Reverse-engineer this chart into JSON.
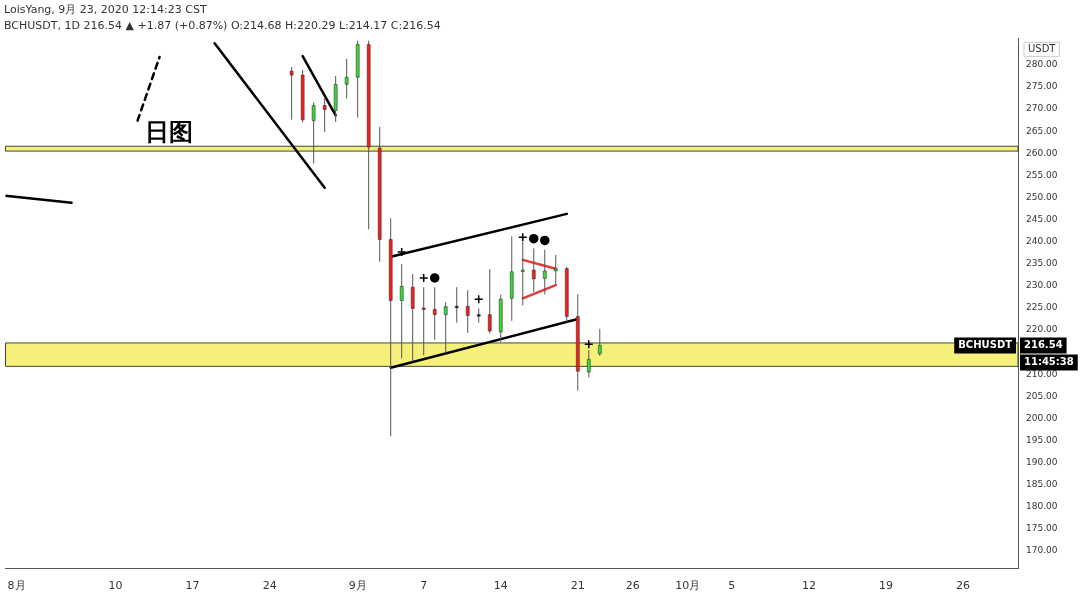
{
  "chart_data": {
    "type": "candlestick",
    "title": "LoisYang, 9月 23, 2020 12:14:23 CST",
    "subtitle": "BCHUSDT, 1D 216.54 ▲ +1.87 (+0.87%) O:214.68 H:220.29 L:214.17 C:216.54",
    "ylabel": "USDT",
    "x": [
      "2020-08-26",
      "2020-08-27",
      "2020-08-28",
      "2020-08-29",
      "2020-08-30",
      "2020-08-31",
      "2020-09-01",
      "2020-09-02",
      "2020-09-03",
      "2020-09-04",
      "2020-09-05",
      "2020-09-06",
      "2020-09-07",
      "2020-09-08",
      "2020-09-09",
      "2020-09-10",
      "2020-09-11",
      "2020-09-12",
      "2020-09-13",
      "2020-09-14",
      "2020-09-15",
      "2020-09-16",
      "2020-09-17",
      "2020-09-18",
      "2020-09-19",
      "2020-09-20",
      "2020-09-21",
      "2020-09-22",
      "2020-09-23"
    ],
    "ohlc": [
      [
        278.6,
        279.5,
        267.6,
        277.7
      ],
      [
        277.7,
        278.9,
        267.0,
        267.6
      ],
      [
        267.4,
        271.5,
        257.7,
        270.8
      ],
      [
        270.8,
        272.4,
        264.8,
        269.9
      ],
      [
        269.7,
        277.5,
        267.1,
        275.6
      ],
      [
        275.6,
        281.4,
        272.4,
        277.2
      ],
      [
        277.2,
        285.5,
        268.1,
        284.6
      ],
      [
        284.6,
        285.5,
        242.8,
        261.4
      ],
      [
        261.2,
        266.0,
        235.5,
        240.5
      ],
      [
        240.5,
        245.3,
        196.0,
        226.7
      ],
      [
        226.7,
        235.0,
        213.6,
        229.9
      ],
      [
        229.7,
        232.7,
        212.9,
        224.9
      ],
      [
        225.0,
        229.7,
        214.3,
        224.7
      ],
      [
        224.7,
        229.7,
        217.8,
        223.5
      ],
      [
        223.5,
        226.3,
        214.8,
        225.3
      ],
      [
        225.3,
        229.7,
        221.7,
        225.4
      ],
      [
        225.4,
        229.0,
        219.4,
        223.3
      ],
      [
        223.3,
        224.9,
        221.7,
        223.5
      ],
      [
        223.5,
        233.8,
        219.2,
        219.8
      ],
      [
        219.6,
        228.0,
        217.3,
        227.0
      ],
      [
        227.2,
        241.2,
        222.1,
        233.2
      ],
      [
        233.4,
        240.0,
        225.6,
        233.6
      ],
      [
        233.6,
        238.5,
        228.6,
        231.6
      ],
      [
        231.7,
        238.2,
        228.1,
        233.4
      ],
      [
        233.4,
        237.0,
        230.4,
        233.9
      ],
      [
        233.9,
        234.3,
        221.7,
        223.1
      ],
      [
        223.1,
        228.1,
        206.3,
        210.7
      ],
      [
        210.5,
        215.5,
        209.3,
        213.4
      ],
      [
        214.68,
        220.29,
        214.17,
        216.54
      ]
    ],
    "colors": [
      "#ff1a1a",
      "#ff1a1a",
      "#33dd33",
      "#ff1a1a",
      "#33dd33",
      "#33dd33",
      "#33dd33",
      "#ff1a1a",
      "#ff1a1a",
      "#ff1a1a",
      "#33dd33",
      "#ff1a1a",
      "#ff1a1a",
      "#ff1a1a",
      "#33dd33",
      "#000000",
      "#ff1a1a",
      "#000000",
      "#ff1a1a",
      "#33dd33",
      "#33dd33",
      "#33dd33",
      "#ff1a1a",
      "#33dd33",
      "#33dd33",
      "#ff1a1a",
      "#ff1a1a",
      "#33dd33",
      "#33dd33"
    ],
    "series": [
      {
        "type": "line",
        "color": "#000000",
        "line_style": "solid",
        "x": [
          "2020-07-31",
          "2020-08-06"
        ],
        "values": [
          250.4,
          248.8
        ]
      },
      {
        "type": "line",
        "color": "#000000",
        "line_style": "dashed",
        "x": [
          "2020-08-12",
          "2020-08-14"
        ],
        "values": [
          267.4,
          281.8
        ]
      },
      {
        "type": "line",
        "color": "#000000",
        "line_style": "solid",
        "x": [
          "2020-08-19",
          "2020-08-29"
        ],
        "values": [
          284.9,
          252.2
        ]
      },
      {
        "type": "line",
        "color": "#000000",
        "line_style": "solid",
        "x": [
          "2020-08-27",
          "2020-08-30"
        ],
        "values": [
          282.0,
          268.6
        ]
      },
      {
        "type": "line",
        "color": "#000000",
        "line_style": "solid",
        "x": [
          "2020-09-04",
          "2020-09-20"
        ],
        "values": [
          236.6,
          246.3
        ]
      },
      {
        "type": "line",
        "color": "#000000",
        "line_style": "solid",
        "x": [
          "2020-09-04",
          "2020-09-21"
        ],
        "values": [
          211.5,
          222.5
        ]
      },
      {
        "type": "line",
        "color": "#e53935",
        "line_style": "solid",
        "x": [
          "2020-09-16",
          "2020-09-19"
        ],
        "values": [
          235.9,
          233.9
        ]
      },
      {
        "type": "line",
        "color": "#e53935",
        "line_style": "solid",
        "x": [
          "2020-09-16",
          "2020-09-19"
        ],
        "values": [
          227.2,
          230.2
        ]
      },
      {
        "type": "scatter",
        "color": "#000000",
        "marker": "cross",
        "x": [
          "2020-09-05",
          "2020-09-07",
          "2020-09-12",
          "2020-09-16",
          "2020-09-22"
        ],
        "values": [
          237.7,
          231.8,
          227.0,
          241.0,
          216.8
        ]
      },
      {
        "type": "scatter",
        "color": "#000000",
        "marker": "circle",
        "x": [
          "2020-09-08",
          "2020-09-17",
          "2020-09-18"
        ],
        "values": [
          231.8,
          240.7,
          240.3
        ]
      }
    ],
    "bands": [
      {
        "axis": "y",
        "from": 211.8,
        "to": 217.1,
        "color": "#f5f07a"
      },
      {
        "axis": "y",
        "from": 260.5,
        "to": 261.6,
        "color": "#f5f07a"
      }
    ],
    "annotations": [
      "日图",
      "BCHUSDT",
      "216.54",
      "11:45:38"
    ],
    "xlim": [
      "2020-07-31",
      "2020-10-31"
    ],
    "xticks": [
      {
        "value": "2020-08-01",
        "label": "8月"
      },
      {
        "value": "2020-08-10",
        "label": "10"
      },
      {
        "value": "2020-08-17",
        "label": "17"
      },
      {
        "value": "2020-08-24",
        "label": "24"
      },
      {
        "value": "2020-09-01",
        "label": "9月"
      },
      {
        "value": "2020-09-07",
        "label": "7"
      },
      {
        "value": "2020-09-14",
        "label": "14"
      },
      {
        "value": "2020-09-21",
        "label": "21"
      },
      {
        "value": "2020-09-26",
        "label": "26"
      },
      {
        "value": "2020-10-01",
        "label": "10月"
      },
      {
        "value": "2020-10-05",
        "label": "5"
      },
      {
        "value": "2020-10-12",
        "label": "12"
      },
      {
        "value": "2020-10-19",
        "label": "19"
      },
      {
        "value": "2020-10-26",
        "label": "26"
      }
    ],
    "ylim": [
      166,
      286
    ],
    "yticks": [
      {
        "value": 170,
        "label": "170.00"
      },
      {
        "value": 175,
        "label": "175.00"
      },
      {
        "value": 180,
        "label": "180.00"
      },
      {
        "value": 185,
        "label": "185.00"
      },
      {
        "value": 190,
        "label": "190.00"
      },
      {
        "value": 195,
        "label": "195.00"
      },
      {
        "value": 200,
        "label": "200.00"
      },
      {
        "value": 205,
        "label": "205.00"
      },
      {
        "value": 210,
        "label": "210.00"
      },
      {
        "value": 220,
        "label": "220.00"
      },
      {
        "value": 225,
        "label": "225.00"
      },
      {
        "value": 230,
        "label": "230.00"
      },
      {
        "value": 235,
        "label": "235.00"
      },
      {
        "value": 240,
        "label": "240.00"
      },
      {
        "value": 245,
        "label": "245.00"
      },
      {
        "value": 250,
        "label": "250.00"
      },
      {
        "value": 255,
        "label": "255.00"
      },
      {
        "value": 260,
        "label": "260.00"
      },
      {
        "value": 265,
        "label": "265.00"
      },
      {
        "value": 270,
        "label": "270.00"
      },
      {
        "value": 275,
        "label": "275.00"
      },
      {
        "value": 280,
        "label": "280.00"
      }
    ],
    "grid": false,
    "legend": false
  }
}
